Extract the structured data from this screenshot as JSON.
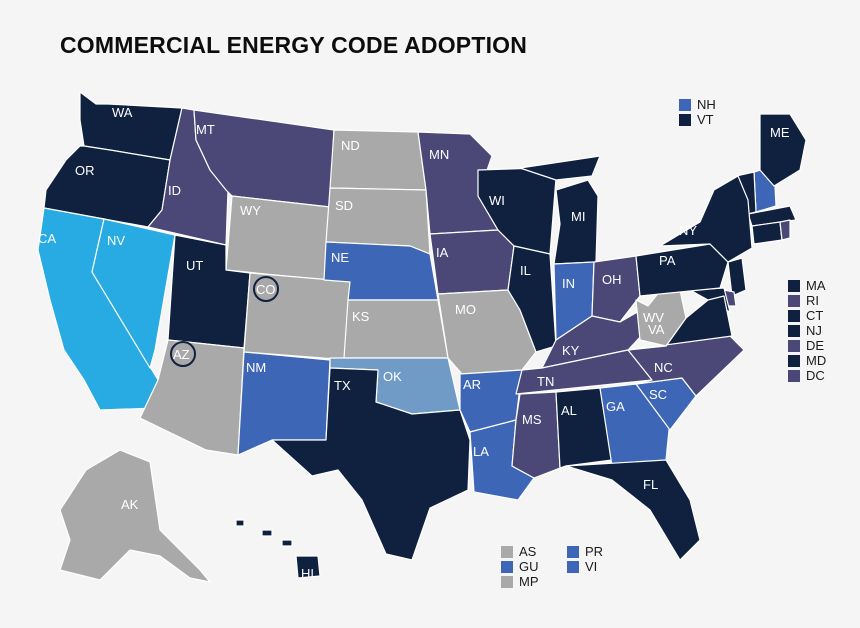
{
  "title": "COMMERCIAL ENERGY CODE ADOPTION",
  "colors": {
    "dark_navy": "#0f213f",
    "purple": "#4b4878",
    "blue": "#3d66b6",
    "light_blue": "#27abe2",
    "steel_blue": "#6f9bc6",
    "gray": "#a9a9a9",
    "background": "#f5f5f5"
  },
  "states": [
    {
      "abbr": "WA",
      "color": "dark_navy"
    },
    {
      "abbr": "OR",
      "color": "dark_navy"
    },
    {
      "abbr": "CA",
      "color": "light_blue"
    },
    {
      "abbr": "NV",
      "color": "light_blue"
    },
    {
      "abbr": "ID",
      "color": "purple"
    },
    {
      "abbr": "MT",
      "color": "purple"
    },
    {
      "abbr": "WY",
      "color": "gray"
    },
    {
      "abbr": "UT",
      "color": "dark_navy"
    },
    {
      "abbr": "CO",
      "color": "gray"
    },
    {
      "abbr": "AZ",
      "color": "gray"
    },
    {
      "abbr": "NM",
      "color": "blue"
    },
    {
      "abbr": "ND",
      "color": "gray"
    },
    {
      "abbr": "SD",
      "color": "gray"
    },
    {
      "abbr": "NE",
      "color": "blue"
    },
    {
      "abbr": "KS",
      "color": "gray"
    },
    {
      "abbr": "OK",
      "color": "steel_blue"
    },
    {
      "abbr": "TX",
      "color": "dark_navy"
    },
    {
      "abbr": "MN",
      "color": "purple"
    },
    {
      "abbr": "IA",
      "color": "purple"
    },
    {
      "abbr": "MO",
      "color": "gray"
    },
    {
      "abbr": "AR",
      "color": "blue"
    },
    {
      "abbr": "LA",
      "color": "blue"
    },
    {
      "abbr": "WI",
      "color": "dark_navy"
    },
    {
      "abbr": "IL",
      "color": "dark_navy"
    },
    {
      "abbr": "MI",
      "color": "dark_navy"
    },
    {
      "abbr": "IN",
      "color": "blue"
    },
    {
      "abbr": "OH",
      "color": "purple"
    },
    {
      "abbr": "KY",
      "color": "purple"
    },
    {
      "abbr": "TN",
      "color": "purple"
    },
    {
      "abbr": "MS",
      "color": "purple"
    },
    {
      "abbr": "AL",
      "color": "dark_navy"
    },
    {
      "abbr": "GA",
      "color": "blue"
    },
    {
      "abbr": "FL",
      "color": "dark_navy"
    },
    {
      "abbr": "SC",
      "color": "blue"
    },
    {
      "abbr": "NC",
      "color": "purple"
    },
    {
      "abbr": "VA",
      "color": "dark_navy"
    },
    {
      "abbr": "WV",
      "color": "gray"
    },
    {
      "abbr": "PA",
      "color": "dark_navy"
    },
    {
      "abbr": "NY",
      "color": "dark_navy"
    },
    {
      "abbr": "ME",
      "color": "dark_navy"
    },
    {
      "abbr": "AK",
      "color": "gray"
    },
    {
      "abbr": "HI",
      "color": "dark_navy"
    }
  ],
  "legend_top": [
    {
      "abbr": "NH",
      "color": "blue"
    },
    {
      "abbr": "VT",
      "color": "dark_navy"
    }
  ],
  "legend_right": [
    {
      "abbr": "MA",
      "color": "dark_navy"
    },
    {
      "abbr": "RI",
      "color": "purple"
    },
    {
      "abbr": "CT",
      "color": "dark_navy"
    },
    {
      "abbr": "NJ",
      "color": "dark_navy"
    },
    {
      "abbr": "DE",
      "color": "purple"
    },
    {
      "abbr": "MD",
      "color": "dark_navy"
    },
    {
      "abbr": "DC",
      "color": "purple"
    }
  ],
  "legend_bottom_left": [
    {
      "abbr": "AS",
      "color": "gray"
    },
    {
      "abbr": "GU",
      "color": "blue"
    },
    {
      "abbr": "MP",
      "color": "gray"
    }
  ],
  "legend_bottom_right": [
    {
      "abbr": "PR",
      "color": "blue"
    },
    {
      "abbr": "VI",
      "color": "blue"
    }
  ]
}
